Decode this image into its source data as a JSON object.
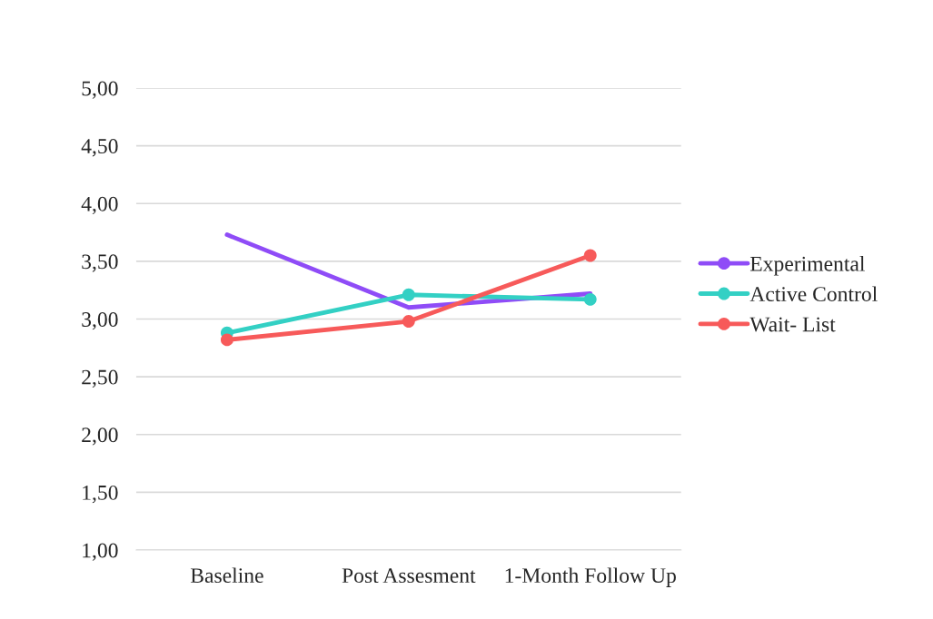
{
  "chart_data": {
    "type": "line",
    "categories": [
      "Baseline",
      "Post Assesment",
      "1-Month Follow Up"
    ],
    "series": [
      {
        "name": "Experimental",
        "color": "#8f4cf7",
        "values": [
          3.73,
          3.1,
          3.22
        ],
        "marker": "none"
      },
      {
        "name": "Active Control",
        "color": "#33d0c4",
        "values": [
          2.88,
          3.21,
          3.17
        ],
        "marker": "circle"
      },
      {
        "name": "Wait- List",
        "color": "#f75a5a",
        "values": [
          2.82,
          2.98,
          3.55
        ],
        "marker": "circle"
      }
    ],
    "ylim": [
      1,
      5
    ],
    "yticks": [
      {
        "value": 1,
        "label": "1,00"
      },
      {
        "value": 1.5,
        "label": "1,50"
      },
      {
        "value": 2,
        "label": "2,00"
      },
      {
        "value": 2.5,
        "label": "2,50"
      },
      {
        "value": 3,
        "label": "3,00"
      },
      {
        "value": 3.5,
        "label": "3,50"
      },
      {
        "value": 4,
        "label": "4,00"
      },
      {
        "value": 4.5,
        "label": "4,50"
      },
      {
        "value": 5,
        "label": "5,00"
      }
    ],
    "grid": "y",
    "legend": "right",
    "line_style": "solid"
  }
}
